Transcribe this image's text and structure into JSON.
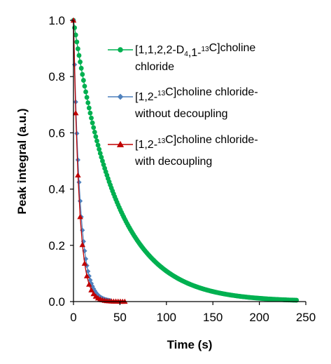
{
  "chart_data": {
    "type": "scatter",
    "xlabel": "Time (s)",
    "ylabel": "Peak integral (a.u.)",
    "xlim": [
      0,
      250
    ],
    "ylim": [
      0,
      1.0
    ],
    "x_ticks": [
      "0",
      "50",
      "100",
      "150",
      "200",
      "250"
    ],
    "y_ticks": [
      "0.0",
      "0.2",
      "0.4",
      "0.6",
      "0.8",
      "1.0"
    ],
    "grid": false,
    "legend_position": "top-right",
    "series": [
      {
        "name": "[1,1,2,2-D4,1-13C]choline chloride",
        "legend_lines": [
          [
            {
              "t": "[1,1,2,2-D"
            },
            {
              "t": "4",
              "s": "sub"
            },
            {
              "t": ",1-"
            },
            {
              "t": "13",
              "s": "sup"
            },
            {
              "t": "C]choline"
            }
          ],
          [
            {
              "t": "chloride"
            }
          ]
        ],
        "color": "#00b050",
        "marker": "circle",
        "decay_time_constant": 45,
        "sample_interval": 1.2,
        "x_max": 240
      },
      {
        "name": "[1,2-13C]choline chloride-without decoupling",
        "legend_lines": [
          [
            {
              "t": "[1,2-"
            },
            {
              "t": "13",
              "s": "sup"
            },
            {
              "t": "C]choline chloride-"
            }
          ],
          [
            {
              "t": "without decoupling"
            }
          ]
        ],
        "color": "#4f81bd",
        "marker": "diamond",
        "decay_time_constant": 7,
        "sample_interval": 1.2,
        "x_max": 40
      },
      {
        "name": "[1,2-13C]choline chloride-with decoupling",
        "legend_lines": [
          [
            {
              "t": "[1,2-"
            },
            {
              "t": "13",
              "s": "sup"
            },
            {
              "t": "C]choline chloride-"
            }
          ],
          [
            {
              "t": "with decoupling"
            }
          ]
        ],
        "color": "#c00000",
        "marker": "triangle",
        "decay_time_constant": 6,
        "sample_interval": 2.4,
        "x_max": 57
      }
    ]
  }
}
